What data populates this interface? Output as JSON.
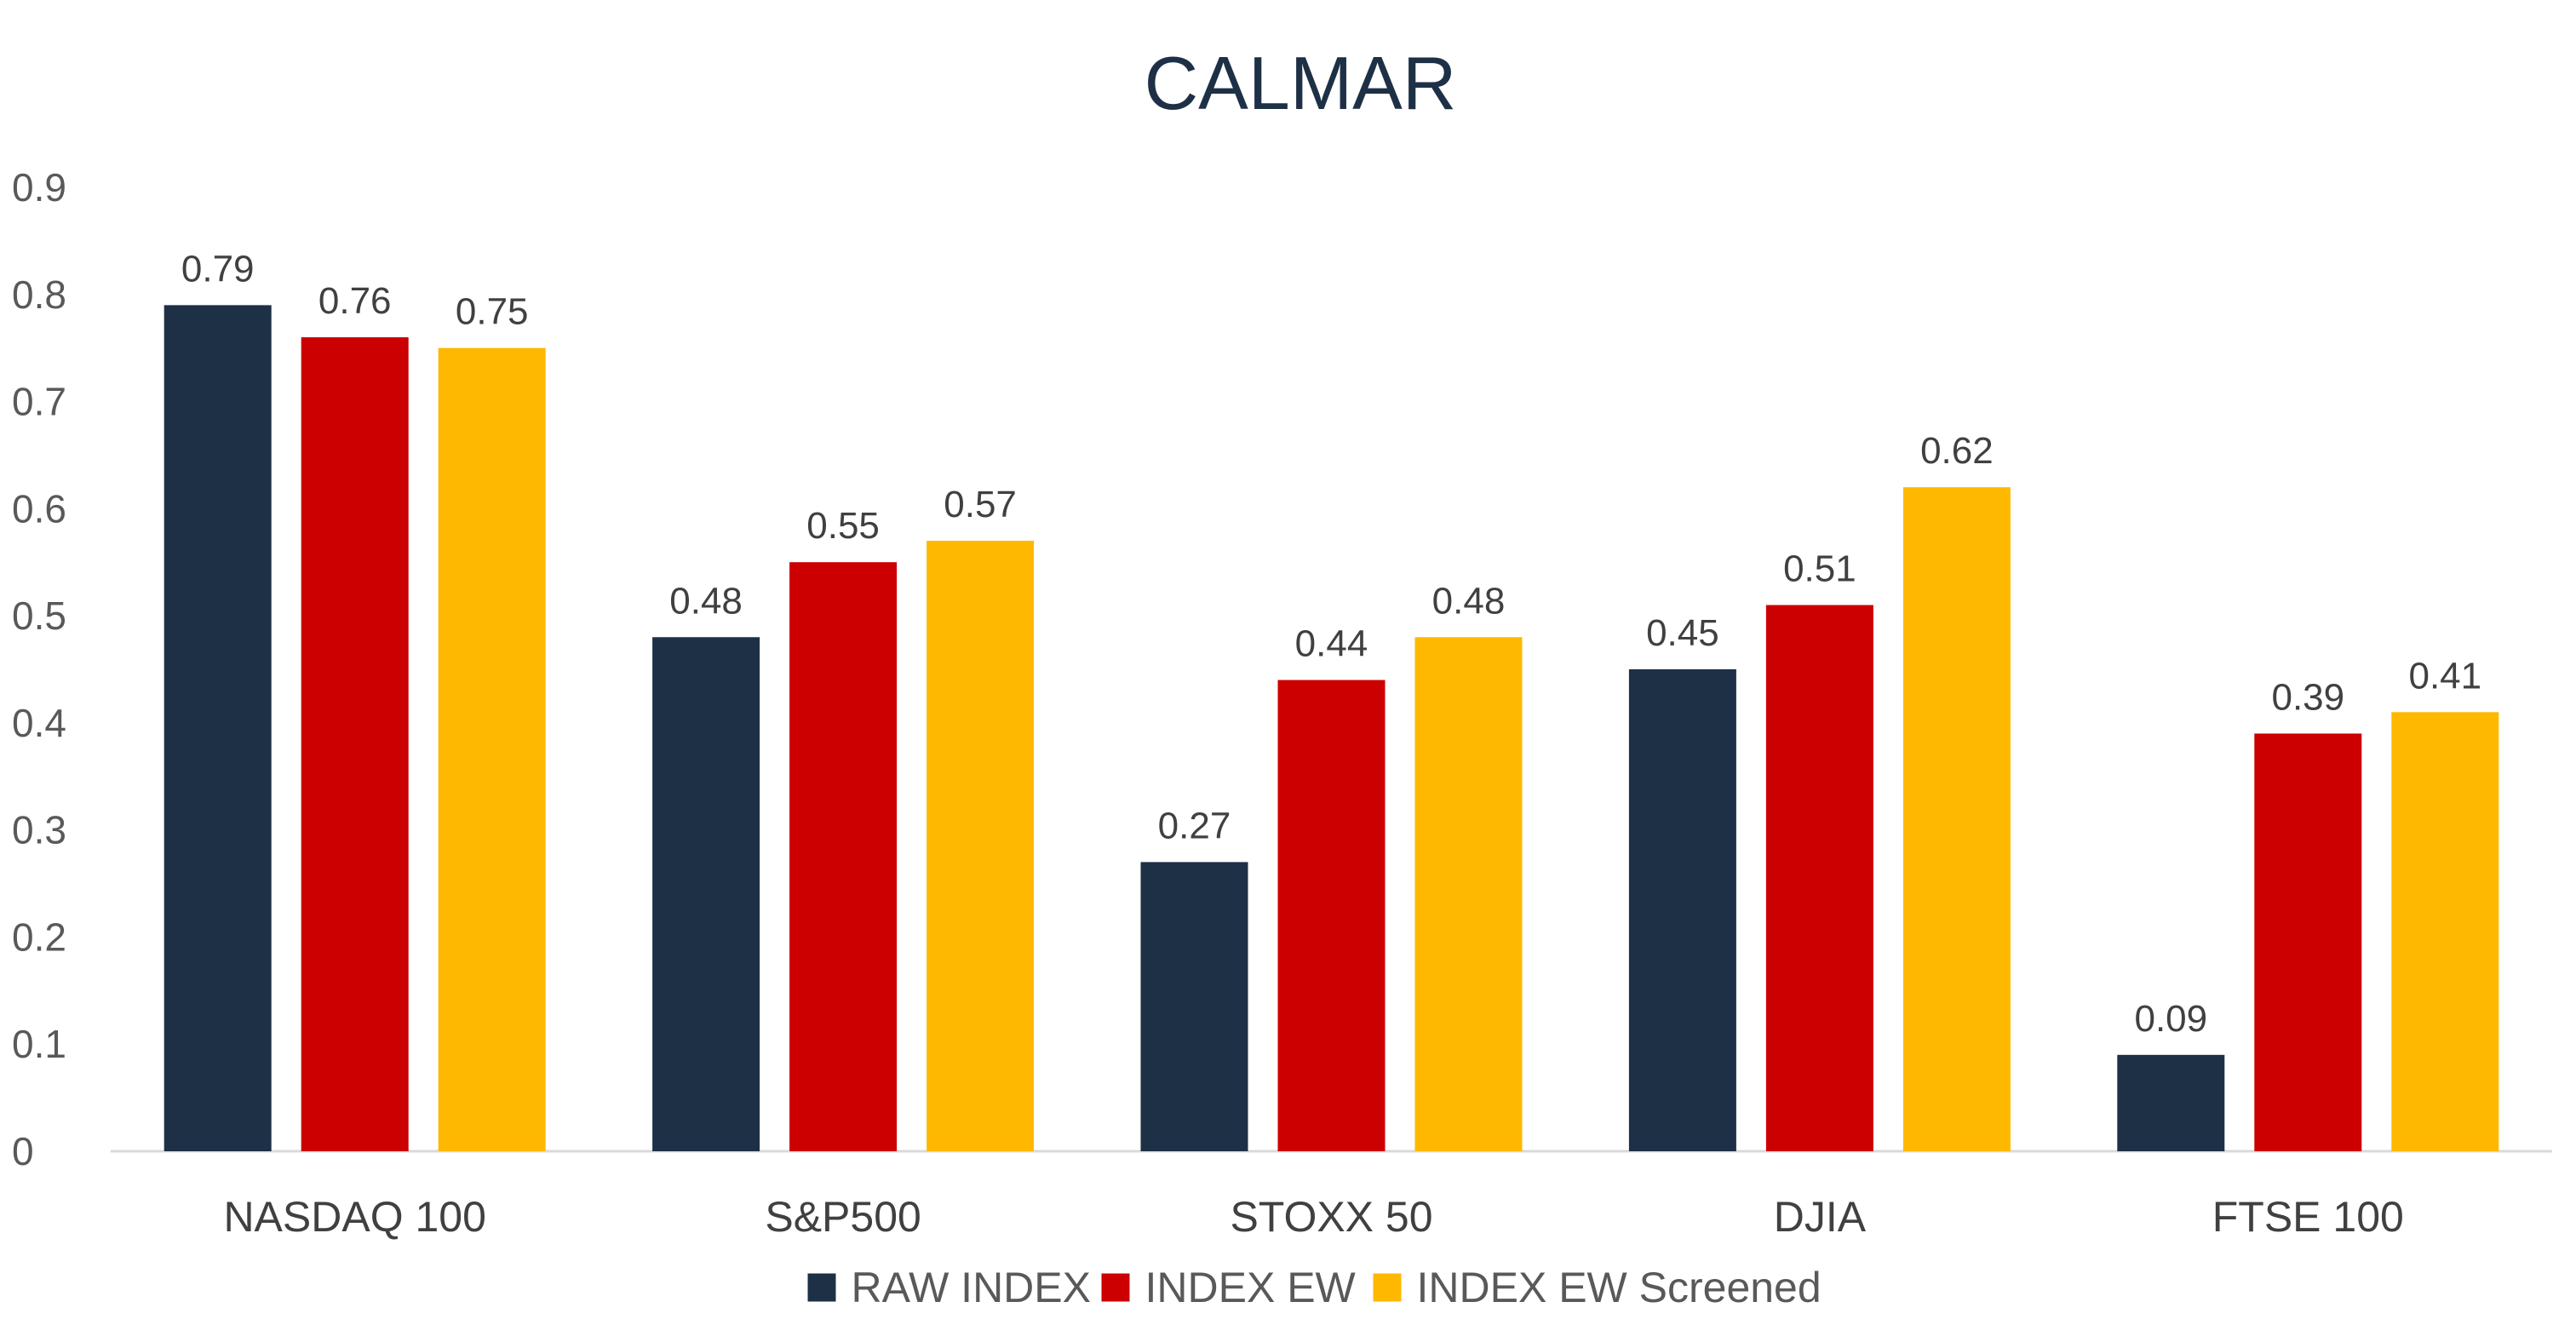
{
  "chart_data": {
    "type": "bar",
    "title": "CALMAR",
    "xlabel": "",
    "ylabel": "",
    "categories": [
      "NASDAQ 100",
      "S&P500",
      "STOXX 50",
      "DJIA",
      "FTSE 100"
    ],
    "series": [
      {
        "name": "RAW INDEX",
        "color": "#1e3046",
        "values": [
          0.79,
          0.48,
          0.27,
          0.45,
          0.09
        ]
      },
      {
        "name": "INDEX EW",
        "color": "#cc0000",
        "values": [
          0.76,
          0.55,
          0.44,
          0.51,
          0.39
        ]
      },
      {
        "name": "INDEX EW Screened",
        "color": "#ffb800",
        "values": [
          0.75,
          0.57,
          0.48,
          0.62,
          0.41
        ]
      }
    ],
    "ylim": [
      0,
      0.9
    ],
    "yticks": [
      "0",
      "0.1",
      "0.2",
      "0.3",
      "0.4",
      "0.5",
      "0.6",
      "0.7",
      "0.8",
      "0.9"
    ],
    "grid": false,
    "legend_position": "bottom",
    "data_labels": true
  }
}
